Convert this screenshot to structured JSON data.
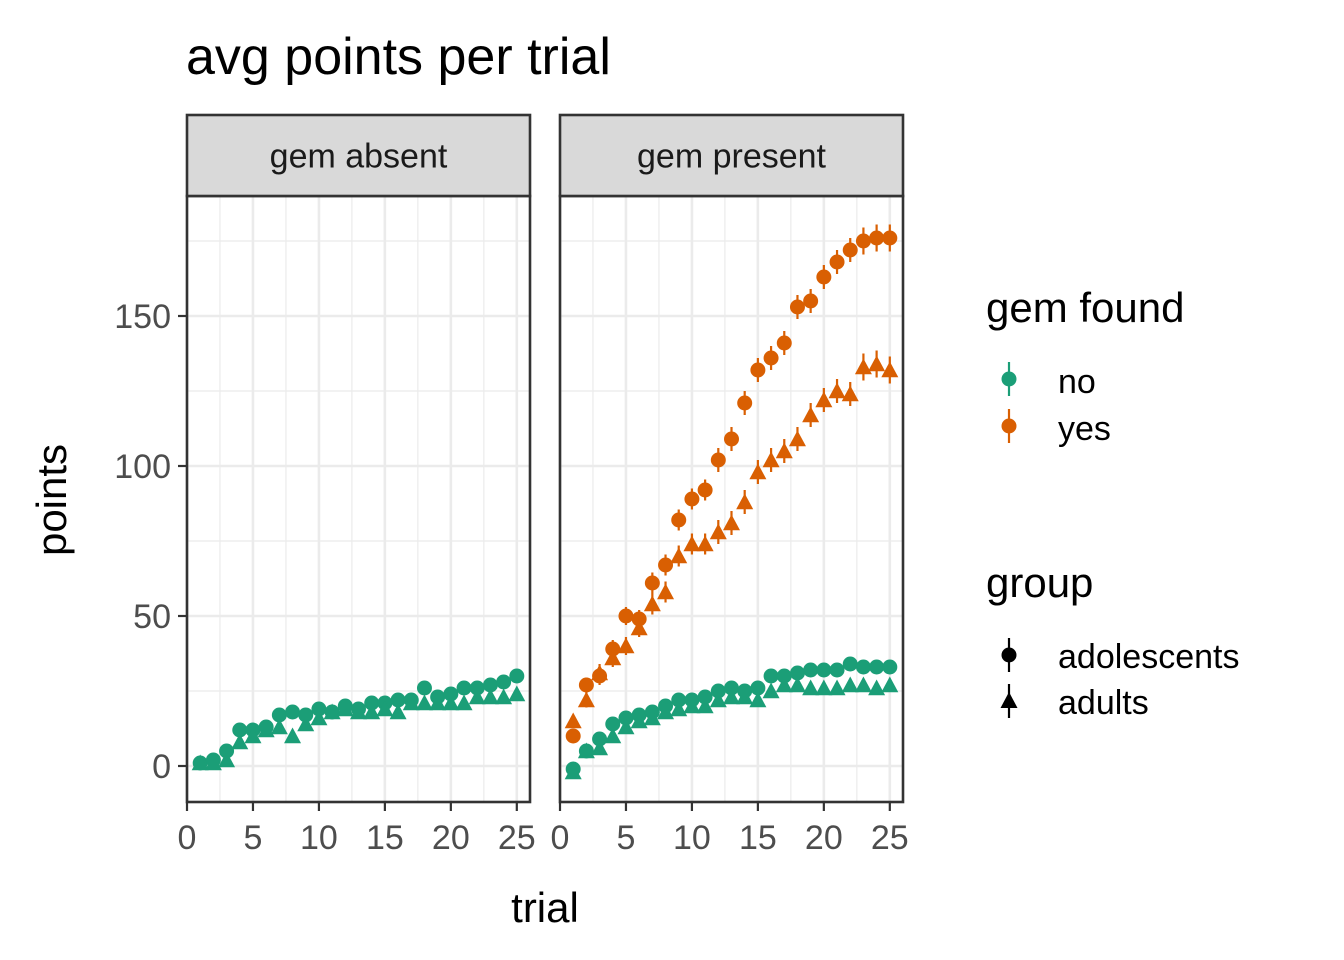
{
  "chart_data": {
    "type": "scatter",
    "title": "avg points per trial",
    "xlabel": "trial",
    "ylabel": "points",
    "xlim": [
      0,
      26
    ],
    "ylim": [
      -12,
      190
    ],
    "xticks": [
      0,
      5,
      10,
      15,
      20,
      25
    ],
    "yticks": [
      0,
      50,
      100,
      150
    ],
    "grid": true,
    "facets": [
      "gem absent",
      "gem present"
    ],
    "legend": {
      "placement": "right",
      "color": {
        "title": "gem found",
        "entries": [
          {
            "label": "no",
            "color": "#1b9e77"
          },
          {
            "label": "yes",
            "color": "#d95f02"
          }
        ]
      },
      "shape": {
        "title": "group",
        "entries": [
          {
            "label": "adolescents",
            "shape": "circle"
          },
          {
            "label": "adults",
            "shape": "triangle"
          }
        ]
      }
    },
    "x": [
      1,
      2,
      3,
      4,
      5,
      6,
      7,
      8,
      9,
      10,
      11,
      12,
      13,
      14,
      15,
      16,
      17,
      18,
      19,
      20,
      21,
      22,
      23,
      24,
      25
    ],
    "series": [
      {
        "facet": "gem absent",
        "gem_found": "no",
        "group": "adolescents",
        "color": "#1b9e77",
        "shape": "circle",
        "values": [
          1,
          2,
          5,
          12,
          12,
          13,
          17,
          18,
          17,
          19,
          18,
          20,
          19,
          21,
          21,
          22,
          22,
          26,
          23,
          24,
          26,
          26,
          27,
          28,
          30
        ],
        "err": [
          1.2,
          1.2,
          1.3,
          1.5,
          1.5,
          1.5,
          1.6,
          1.6,
          1.6,
          1.6,
          1.6,
          1.7,
          1.7,
          1.7,
          1.7,
          1.7,
          1.7,
          1.8,
          1.8,
          1.8,
          1.8,
          1.8,
          1.9,
          1.9,
          1.9
        ]
      },
      {
        "facet": "gem absent",
        "gem_found": "no",
        "group": "adults",
        "color": "#1b9e77",
        "shape": "triangle",
        "values": [
          1,
          1,
          2,
          8,
          10,
          12,
          13,
          10,
          14,
          16,
          18,
          19,
          18,
          18,
          19,
          18,
          21,
          21,
          21,
          21,
          21,
          23,
          23,
          23,
          24
        ],
        "err": [
          1.2,
          1.2,
          1.3,
          1.5,
          1.5,
          1.5,
          1.6,
          1.6,
          1.6,
          1.6,
          1.6,
          1.7,
          1.7,
          1.7,
          1.7,
          1.7,
          1.7,
          1.8,
          1.8,
          1.8,
          1.8,
          1.8,
          1.9,
          1.9,
          1.9
        ]
      },
      {
        "facet": "gem present",
        "gem_found": "no",
        "group": "adolescents",
        "color": "#1b9e77",
        "shape": "circle",
        "values": [
          -1,
          5,
          9,
          14,
          16,
          17,
          18,
          20,
          22,
          22,
          23,
          25,
          26,
          25,
          26,
          30,
          30,
          31,
          32,
          32,
          32,
          34,
          33,
          33,
          33
        ],
        "err": [
          1.5,
          1.5,
          1.6,
          1.6,
          1.6,
          1.7,
          1.7,
          1.7,
          1.8,
          1.8,
          1.8,
          1.8,
          1.9,
          1.9,
          1.9,
          1.9,
          2,
          2,
          2,
          2,
          2,
          2.1,
          2.1,
          2.1,
          2.1
        ]
      },
      {
        "facet": "gem present",
        "gem_found": "no",
        "group": "adults",
        "color": "#1b9e77",
        "shape": "triangle",
        "values": [
          -2,
          5,
          6,
          10,
          13,
          15,
          16,
          18,
          19,
          20,
          20,
          22,
          23,
          23,
          22,
          25,
          27,
          27,
          26,
          26,
          26,
          27,
          27,
          26,
          27
        ],
        "err": [
          1.5,
          1.5,
          1.6,
          1.6,
          1.6,
          1.7,
          1.7,
          1.7,
          1.8,
          1.8,
          1.8,
          1.8,
          1.9,
          1.9,
          1.9,
          1.9,
          2,
          2,
          2,
          2,
          2,
          2.1,
          2.1,
          2.1,
          2.1
        ]
      },
      {
        "facet": "gem present",
        "gem_found": "yes",
        "group": "adolescents",
        "color": "#d95f02",
        "shape": "circle",
        "values": [
          10,
          27,
          30,
          39,
          50,
          49,
          61,
          67,
          82,
          89,
          92,
          102,
          109,
          121,
          132,
          136,
          141,
          153,
          155,
          163,
          168,
          172,
          175,
          176,
          176
        ],
        "err": [
          2,
          2.5,
          3,
          3,
          3,
          3,
          3.5,
          3.5,
          3.5,
          3.5,
          3.5,
          4,
          4,
          4,
          4,
          4,
          4,
          4,
          4,
          4,
          4,
          4,
          4.5,
          4.5,
          4.5
        ]
      },
      {
        "facet": "gem present",
        "gem_found": "yes",
        "group": "adults",
        "color": "#d95f02",
        "shape": "triangle",
        "values": [
          15,
          22,
          31,
          36,
          40,
          46,
          54,
          58,
          70,
          74,
          74,
          78,
          81,
          88,
          98,
          102,
          105,
          109,
          117,
          122,
          125,
          124,
          133,
          134,
          132
        ],
        "err": [
          2,
          2.5,
          3,
          3,
          3,
          3,
          3.5,
          3.5,
          3.5,
          3.5,
          3.5,
          4,
          4,
          4,
          4,
          4,
          4,
          4,
          4,
          4,
          4,
          4,
          4.5,
          4.5,
          4.5
        ]
      }
    ]
  }
}
